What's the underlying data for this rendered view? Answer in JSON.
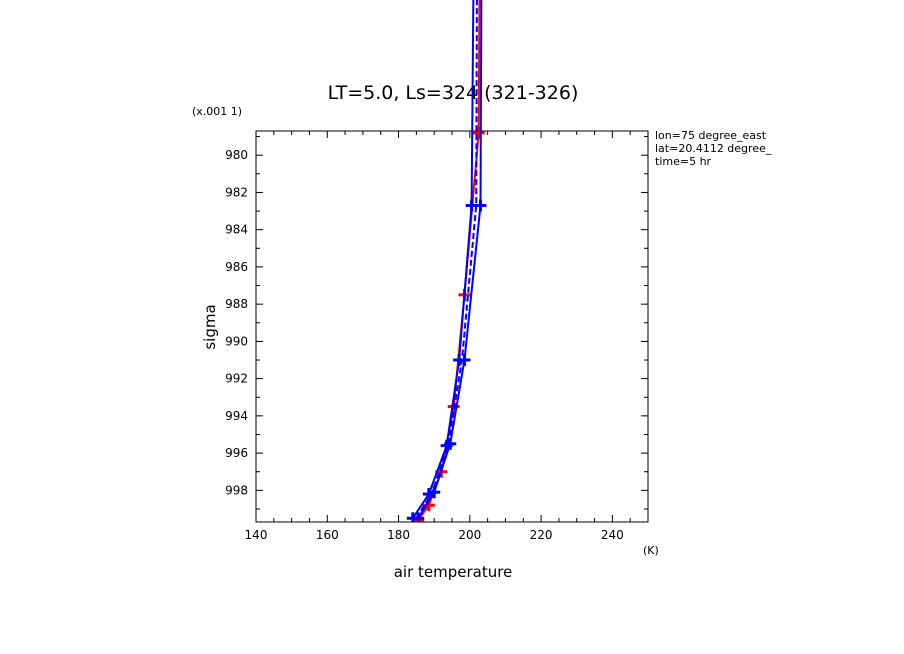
{
  "chart_data": {
    "type": "line",
    "title": "LT=5.0, Ls=324 (321-326)",
    "xlabel": "air temperature",
    "ylabel": "sigma",
    "x_unit": "(K)",
    "y_scale_note": "(x.001 1)",
    "xlim": [
      140,
      250
    ],
    "ylim": [
      999.7,
      978.7
    ],
    "x_ticks": [
      140,
      160,
      180,
      200,
      220,
      240
    ],
    "y_ticks": [
      980,
      982,
      984,
      986,
      988,
      990,
      992,
      994,
      996,
      998
    ],
    "info": [
      "lon=75 degree_east",
      "lat=20.4112 degree_",
      "time=5 hr"
    ],
    "grid": false,
    "series": [
      {
        "color": "#ff0000",
        "style": "solid",
        "marker": "plus",
        "points": [
          [
            185.5,
            999.6
          ],
          [
            188.5,
            998.8
          ],
          [
            192.0,
            997.0
          ],
          [
            195.5,
            993.5
          ],
          [
            198.5,
            987.5
          ],
          [
            202.5,
            978.8
          ],
          [
            203.0,
            960.0
          ]
        ]
      },
      {
        "color": "#0000ff",
        "style": "solid",
        "marker": "plus",
        "points": [
          [
            184.0,
            999.5
          ],
          [
            188.5,
            998.2
          ],
          [
            193.5,
            995.6
          ],
          [
            197.0,
            991.0
          ],
          [
            200.5,
            982.7
          ],
          [
            201.5,
            960.0
          ]
        ]
      },
      {
        "color": "#0000ff",
        "style": "solid",
        "marker": "plus",
        "points": [
          [
            185.5,
            999.5
          ],
          [
            190.0,
            998.1
          ],
          [
            194.5,
            995.5
          ],
          [
            198.5,
            991.0
          ],
          [
            203.0,
            982.7
          ],
          [
            203.5,
            960.0
          ]
        ]
      },
      {
        "color": "#0000ff",
        "style": "dashed",
        "marker": "none",
        "points": [
          [
            185.0,
            999.5
          ],
          [
            189.5,
            998.1
          ],
          [
            194.0,
            995.5
          ],
          [
            197.8,
            991.0
          ],
          [
            201.8,
            982.7
          ],
          [
            202.2,
            960.0
          ]
        ]
      }
    ]
  }
}
